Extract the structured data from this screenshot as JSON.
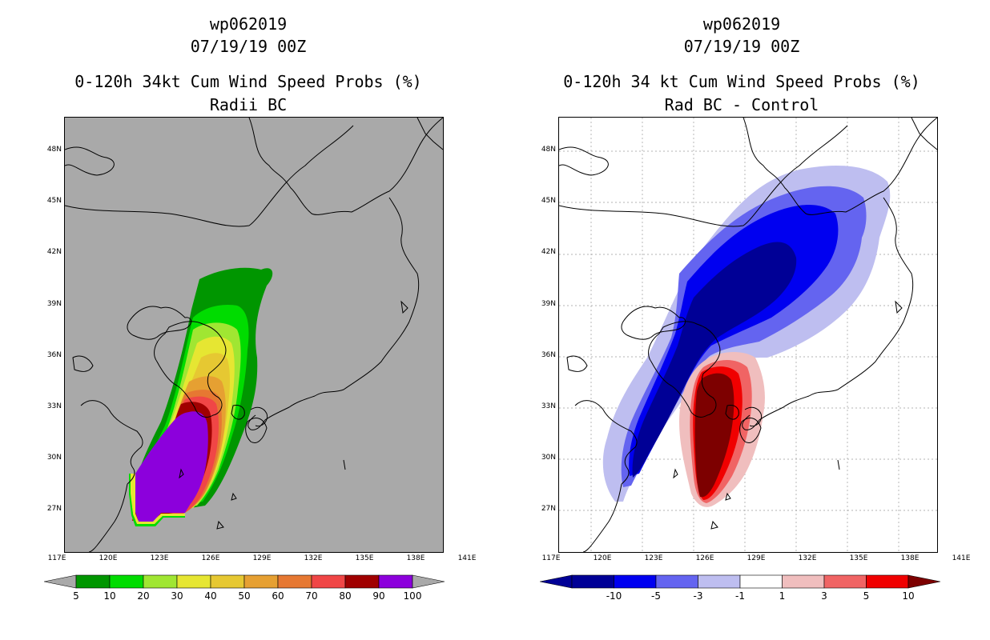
{
  "left": {
    "storm_id": "wp062019",
    "datetime": "07/19/19 00Z",
    "title": "0-120h 34kt Cum Wind Speed Probs (%)",
    "subtitle": "Radii BC",
    "background_color": "#a9a9a9",
    "colorbar": {
      "labels": [
        "5",
        "10",
        "20",
        "30",
        "40",
        "50",
        "60",
        "70",
        "80",
        "90",
        "100"
      ],
      "colors": [
        "#009600",
        "#00dc00",
        "#a0e632",
        "#e6e632",
        "#e6c832",
        "#e6a032",
        "#e67832",
        "#f04646",
        "#a00000",
        "#8c00dc"
      ],
      "end_color": "#a9a9a9"
    }
  },
  "right": {
    "storm_id": "wp062019",
    "datetime": "07/19/19 00Z",
    "title": "0-120h 34 kt Cum Wind Speed Probs (%)",
    "subtitle": "Rad BC - Control",
    "background_color": "#ffffff",
    "colorbar": {
      "labels": [
        "-10",
        "-5",
        "-3",
        "-1",
        "1",
        "3",
        "5",
        "10"
      ],
      "colors": [
        "#000096",
        "#0000f0",
        "#6464f0",
        "#bebef0",
        "#ffffff",
        "#f0bebe",
        "#f06464",
        "#f00000"
      ],
      "start_color": "#000096",
      "end_color": "#7d0000"
    }
  },
  "axes": {
    "lat_labels": [
      "48N",
      "45N",
      "42N",
      "39N",
      "36N",
      "33N",
      "30N",
      "27N"
    ],
    "lon_labels": [
      "117E",
      "120E",
      "123E",
      "126E",
      "129E",
      "132E",
      "135E",
      "138E",
      "141E"
    ]
  }
}
